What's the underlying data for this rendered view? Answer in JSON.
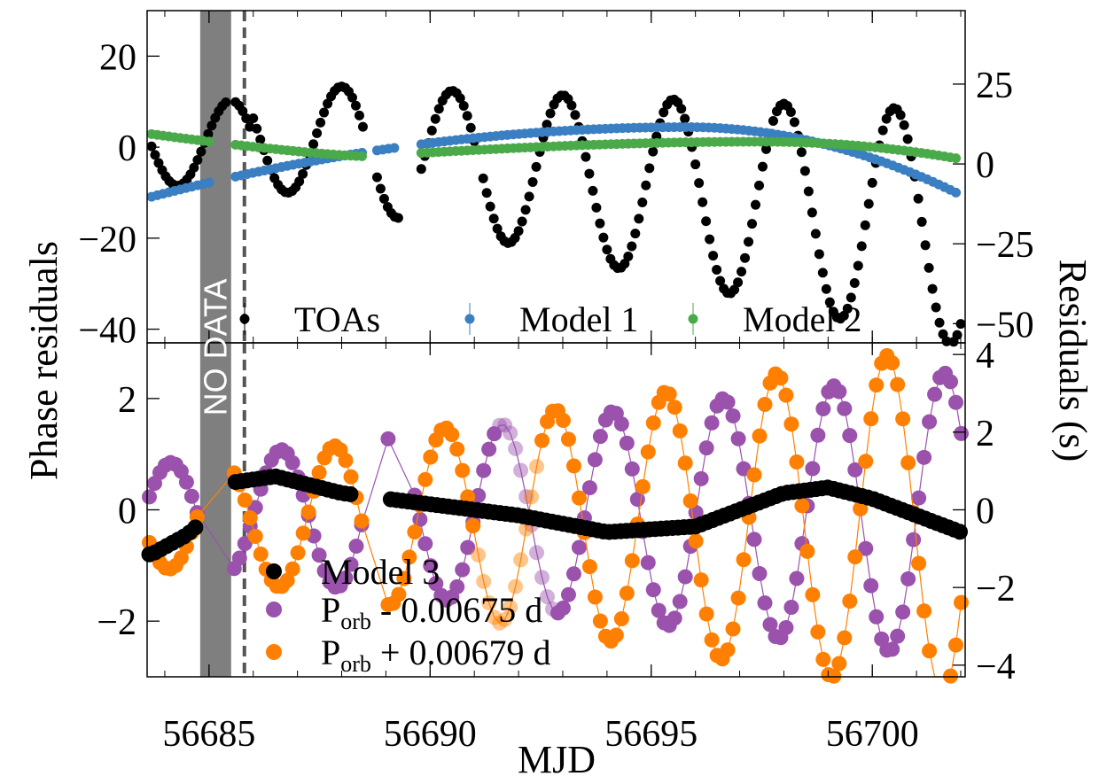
{
  "figure": {
    "xlabel": "MJD",
    "ylabel_left": "Phase residuals",
    "ylabel_right": "Residuals (s)",
    "no_data_label": "NO DATA",
    "no_data_color": "#7f7f7f",
    "colors": {
      "toas": "#000000",
      "model1": "#3a7fc1",
      "model2": "#4aaa4a",
      "model3": "#000000",
      "minus": "#9a52ac",
      "plus": "#ff8000"
    }
  },
  "chart_data": [
    {
      "type": "scatter",
      "panel": "top",
      "xlim": [
        56683.6,
        56702.1
      ],
      "ylim": [
        -43,
        30
      ],
      "ylim_right_seconds": [
        -56,
        48
      ],
      "xticks": [
        56685,
        56690,
        56695,
        56700
      ],
      "yticks_left": [
        -40,
        -20,
        0,
        20
      ],
      "yticks_right": [
        -50,
        -25,
        0,
        25
      ],
      "no_data_span": [
        56684.8,
        56685.5
      ],
      "dashed_line_x": 56685.8,
      "legend": {
        "placement": "bottom",
        "entries": [
          "TOAs",
          "Model 1",
          "Model 2"
        ]
      },
      "series": [
        {
          "name": "TOAs",
          "model": "sinusoid",
          "color": "#000000",
          "amplitude_start": 9,
          "amplitude_end": 26,
          "offset_start": 6,
          "offset_end": -18,
          "period_days": 2.5,
          "phase_ref_mjd": 56688.0,
          "segments": [
            [
              56683.7,
              56685.4
            ],
            [
              56685.6,
              56688.5
            ],
            [
              56688.8,
              56689.3
            ],
            [
              56689.8,
              56691.0
            ],
            [
              56691.2,
              56702.0
            ]
          ]
        },
        {
          "name": "Model 1",
          "model": "quadratic",
          "color": "#3a7fc1",
          "y_start": -10.9,
          "y_peak": 4.4,
          "x_peak": 56695.8,
          "y_end": -10.5,
          "segments": [
            [
              56683.7,
              56685.0
            ],
            [
              56685.6,
              56688.5
            ],
            [
              56688.8,
              56689.3
            ],
            [
              56689.8,
              56702.0
            ]
          ]
        },
        {
          "name": "Model 2",
          "model": "quadratic",
          "color": "#4aaa4a",
          "y_start": 3.0,
          "y_min": -2.0,
          "x_min": 56688.5,
          "y_peak": 1.2,
          "x_peak": 56697.5,
          "y_end": -2.8,
          "segments": [
            [
              56683.7,
              56685.0
            ],
            [
              56685.6,
              56688.5
            ],
            [
              56689.8,
              56702.0
            ]
          ]
        }
      ]
    },
    {
      "type": "line",
      "panel": "bottom",
      "xlim": [
        56683.6,
        56702.1
      ],
      "ylim": [
        -3,
        3
      ],
      "ylim_right_seconds": [
        -4.3,
        4.3
      ],
      "xticks": [
        56685,
        56690,
        56695,
        56700
      ],
      "yticks_left": [
        -2,
        0,
        2
      ],
      "yticks_right": [
        -4,
        -2,
        0,
        2,
        4
      ],
      "no_data_span": [
        56684.8,
        56685.5
      ],
      "dashed_line_x": 56685.8,
      "legend": {
        "placement": "bottom-left",
        "entries": [
          "Model 3",
          "Pₒᵣᵦ - 0.00675 d",
          "Pₒᵣᵦ + 0.00679 d"
        ],
        "base_label": "P",
        "subscript": "orb",
        "suffix_minus": " - 0.00675 d",
        "suffix_plus": " + 0.00679 d"
      },
      "series": [
        {
          "name": "Model 3",
          "color": "#000000",
          "x": [
            56683.7,
            56684.5,
            56685.0,
            56685.6,
            56686.5,
            56688.0,
            56690.0,
            56692.0,
            56694.0,
            56696.0,
            56698.0,
            56699.0,
            56700.0,
            56702.0
          ],
          "y": [
            -0.8,
            -0.45,
            -0.1,
            0.5,
            0.6,
            0.3,
            0.1,
            -0.1,
            -0.4,
            -0.3,
            0.3,
            0.4,
            0.2,
            -0.4
          ]
        },
        {
          "name": "P_orb - 0.00675 d",
          "color": "#9a52ac",
          "model": "sinusoid",
          "amplitude_start": 0.9,
          "amplitude_end": 2.6,
          "period_days": 2.5,
          "phase_ref_mjd": 56686.0,
          "offset": -0.1,
          "faded_range": [
            56691.5,
            56692.8
          ]
        },
        {
          "name": "P_orb + 0.00679 d",
          "color": "#ff8000",
          "model": "sinusoid",
          "amplitude_start": 0.8,
          "amplitude_end": 3.2,
          "period_days": 2.5,
          "phase_ref_mjd": 56687.2,
          "offset": -0.2,
          "faded_range": [
            56691.0,
            56692.5
          ]
        }
      ]
    }
  ]
}
